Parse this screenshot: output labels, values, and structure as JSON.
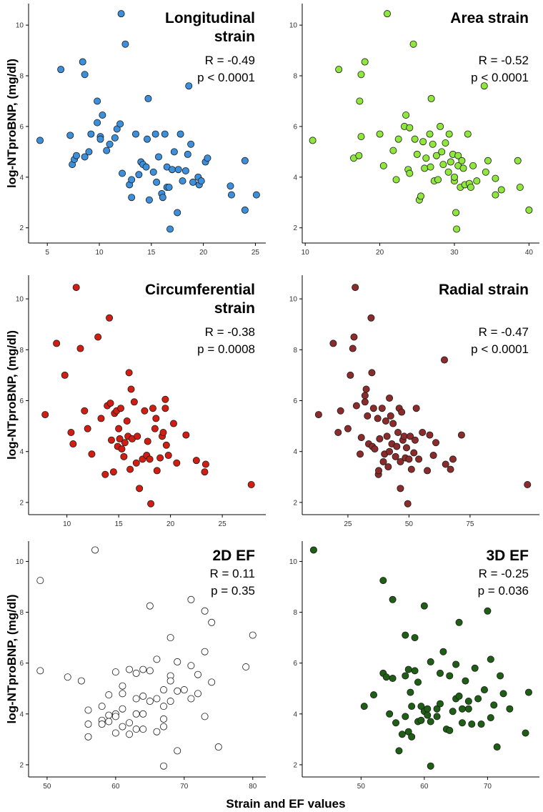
{
  "xlabel": "Strain and EF values",
  "chart_data": [
    {
      "type": "scatter",
      "title": "Longitudinal strain",
      "annotations": [
        "R = -0.49",
        "p < 0.0001"
      ],
      "ylabel": "log-NTproBNP, (mg/dl)",
      "color": "#3b8fdb",
      "xlim": [
        3.2,
        26
      ],
      "xticks": [
        5,
        10,
        15,
        20,
        25
      ],
      "ylim": [
        1.4,
        10.85
      ],
      "yticks": [
        2,
        4,
        6,
        8,
        10
      ],
      "x": [
        4.3,
        6.3,
        8.4,
        8.6,
        7.2,
        7.4,
        7.6,
        7.8,
        8.6,
        9.0,
        9.2,
        9.8,
        9.8,
        10.1,
        10.1,
        10.3,
        10.7,
        11.0,
        11.5,
        11.7,
        12.0,
        12.1,
        12.2,
        12.5,
        12.9,
        13.1,
        13.1,
        13.5,
        13.8,
        14.0,
        14.2,
        14.5,
        14.6,
        14.7,
        14.8,
        15.2,
        15.4,
        15.5,
        15.7,
        16.0,
        16.1,
        16.3,
        16.5,
        16.5,
        16.7,
        16.8,
        17.0,
        17.2,
        17.5,
        17.6,
        17.8,
        18.0,
        18.3,
        18.5,
        18.6,
        18.8,
        19.0,
        19.5,
        19.6,
        19.8,
        20.2,
        20.4,
        22.6,
        22.7,
        24.0,
        24.0,
        25.1
      ],
      "values": [
        5.45,
        8.25,
        8.55,
        8.05,
        5.65,
        4.5,
        4.7,
        4.85,
        4.8,
        5.0,
        5.7,
        6.15,
        7.0,
        5.6,
        5.5,
        6.45,
        5.05,
        5.3,
        5.55,
        5.9,
        6.1,
        10.45,
        4.15,
        9.25,
        3.7,
        3.9,
        3.2,
        5.7,
        4.1,
        4.6,
        4.5,
        4.4,
        5.5,
        7.1,
        3.1,
        4.2,
        5.7,
        3.8,
        4.8,
        3.35,
        3.2,
        5.7,
        3.6,
        4.4,
        3.6,
        1.95,
        4.3,
        5.0,
        2.6,
        4.3,
        5.7,
        3.85,
        4.25,
        4.9,
        7.6,
        5.3,
        3.8,
        4.0,
        3.7,
        3.85,
        4.6,
        4.75,
        3.65,
        3.3,
        4.65,
        2.7,
        3.3
      ]
    },
    {
      "type": "scatter",
      "title": "Area strain",
      "annotations": [
        "R = -0.52",
        "p < 0.0001"
      ],
      "color": "#8fe63c",
      "xlim": [
        9.6,
        41.4
      ],
      "xticks": [
        10,
        20,
        30,
        40
      ],
      "ylim": [
        1.4,
        10.85
      ],
      "yticks": [
        2,
        4,
        6,
        8,
        10
      ],
      "x": [
        11,
        14.5,
        17.5,
        18,
        16.5,
        17.2,
        17.3,
        17.5,
        20,
        20.5,
        21,
        21.8,
        22.2,
        22.5,
        23.3,
        23.5,
        23.8,
        24,
        24,
        24.5,
        24.7,
        25,
        25.3,
        25.5,
        25.8,
        26,
        26.2,
        26.7,
        26.8,
        26.9,
        27.1,
        27.3,
        27.6,
        27.8,
        28.1,
        28.3,
        28.5,
        28.8,
        29.2,
        29.3,
        29.5,
        29.8,
        30,
        30,
        30.2,
        30.3,
        30.5,
        30.5,
        30.8,
        31,
        31.2,
        31.4,
        31.8,
        32.0,
        32.2,
        32.5,
        33,
        34,
        34.2,
        34.5,
        35.5,
        35.5,
        36.3,
        38.5,
        38.8,
        40
      ],
      "values": [
        5.45,
        8.25,
        8.05,
        8.55,
        4.75,
        4.85,
        7.0,
        5.6,
        5.7,
        4.45,
        10.45,
        5.05,
        3.9,
        5.5,
        6.0,
        6.45,
        4.3,
        4.15,
        5.95,
        9.25,
        5.5,
        4.9,
        3.1,
        3.25,
        5.4,
        4.35,
        4.75,
        5.7,
        4.4,
        7.1,
        5.3,
        3.85,
        4.85,
        3.9,
        6.0,
        5.0,
        4.5,
        5.35,
        4.2,
        5.7,
        4.6,
        4.9,
        3.85,
        4.0,
        2.6,
        1.95,
        4.85,
        4.45,
        3.6,
        4.65,
        4.35,
        3.7,
        5.7,
        3.75,
        3.6,
        4.45,
        3.85,
        7.6,
        4.2,
        4.65,
        3.95,
        3.3,
        3.5,
        4.65,
        3.6,
        2.7
      ]
    },
    {
      "type": "scatter",
      "title": "Circumferential strain",
      "annotations": [
        "R = -0.38",
        "p = 0.0008"
      ],
      "ylabel": "log-NTproBNP, (mg/dl)",
      "color": "#d21e12",
      "xlim": [
        6.3,
        29.2
      ],
      "xticks": [
        10,
        15,
        20,
        25
      ],
      "ylim": [
        1.52,
        10.93
      ],
      "yticks": [
        2,
        4,
        6,
        8,
        10
      ],
      "x": [
        7.9,
        9,
        9.8,
        10.4,
        10.6,
        10.9,
        11.3,
        11.7,
        12,
        12.4,
        13,
        13.3,
        13.7,
        13.9,
        14.1,
        14.2,
        14.3,
        14.5,
        14.6,
        14.8,
        14.9,
        15.0,
        15.1,
        15.2,
        15.3,
        15.5,
        15.6,
        15.8,
        15.9,
        16.0,
        16.1,
        16.2,
        16.3,
        16.5,
        16.7,
        16.8,
        17,
        17.3,
        17.5,
        17.7,
        17.8,
        18.0,
        18.1,
        18.3,
        18.5,
        18.6,
        18.7,
        19.0,
        19.2,
        19.3,
        19.5,
        19.5,
        19.6,
        19.8,
        20.3,
        20.6,
        21.5,
        22.5,
        23.4,
        23.3,
        27.8
      ],
      "values": [
        5.45,
        8.25,
        7.0,
        4.75,
        4.3,
        10.45,
        8.05,
        5.6,
        4.9,
        3.9,
        8.5,
        5.3,
        3.1,
        5.8,
        9.25,
        5.9,
        4.45,
        3.2,
        5.5,
        5.6,
        4.2,
        4.9,
        4.5,
        5.7,
        4.1,
        3.8,
        4.35,
        5.2,
        4.6,
        7.1,
        3.3,
        6.45,
        4.5,
        5.95,
        3.55,
        4.6,
        2.55,
        3.7,
        5.6,
        3.85,
        4.4,
        3.7,
        1.95,
        5.7,
        4.9,
        5.3,
        3.25,
        3.75,
        4.6,
        4.75,
        5.7,
        6.05,
        4.25,
        3.85,
        5.1,
        3.55,
        4.65,
        3.65,
        3.5,
        3.2,
        2.7
      ]
    },
    {
      "type": "scatter",
      "title": "Radial strain",
      "annotations": [
        "R = -0.47",
        "p < 0.0001"
      ],
      "color": "#8c2b2b",
      "xlim": [
        6.3,
        103.4
      ],
      "xticks": [
        25,
        50,
        75
      ],
      "ylim": [
        1.52,
        10.93
      ],
      "yticks": [
        2,
        4,
        6,
        8,
        10
      ],
      "x": [
        13,
        19,
        21,
        22,
        25,
        26,
        27,
        27.5,
        28,
        28.5,
        30,
        30.5,
        32,
        32,
        32.5,
        33,
        33.5,
        34.5,
        34.8,
        35,
        35.5,
        36,
        37.2,
        37.5,
        37.6,
        38,
        39,
        39.5,
        40,
        40.5,
        41,
        41.5,
        42,
        42,
        42.5,
        43,
        43.5,
        44.5,
        45,
        45.5,
        46,
        46.5,
        46.5,
        47,
        47.5,
        48,
        48.5,
        49,
        49.5,
        50,
        50.5,
        51,
        52,
        52.5,
        53,
        54,
        55.5,
        57.5,
        58.5,
        60,
        61,
        64.5,
        65,
        67,
        68,
        71.5,
        98.5
      ],
      "values": [
        5.45,
        8.25,
        4.75,
        5.6,
        4.9,
        7.0,
        8.05,
        8.5,
        10.45,
        5.8,
        3.9,
        4.55,
        6.2,
        5.95,
        6.45,
        5.4,
        4.3,
        9.25,
        7.1,
        4.2,
        5.7,
        4.1,
        5.3,
        3.1,
        3.25,
        4.5,
        5.7,
        3.6,
        3.9,
        5.2,
        4.6,
        3.4,
        4.0,
        6.1,
        5.4,
        4.3,
        5.1,
        3.8,
        4.2,
        4.75,
        5.7,
        2.55,
        3.6,
        5.55,
        4.45,
        4.6,
        3.75,
        4.15,
        1.95,
        3.7,
        4.6,
        3.3,
        3.95,
        4.45,
        5.7,
        3.7,
        4.75,
        3.25,
        4.65,
        3.85,
        4.35,
        7.6,
        3.5,
        3.3,
        3.7,
        4.65,
        2.7
      ]
    },
    {
      "type": "scatter",
      "title": "2D EF",
      "annotations": [
        "R = 0.11",
        "p = 0.35"
      ],
      "ylabel": "log-NTproBNP, (mg/dl)",
      "color": "#ffffff",
      "xlim": [
        47.3,
        81.9
      ],
      "xticks": [
        50,
        60,
        70,
        80
      ],
      "ylim": [
        1.52,
        10.8
      ],
      "yticks": [
        2,
        4,
        6,
        8,
        10
      ],
      "x": [
        49,
        49,
        53,
        55,
        56,
        56,
        56,
        57,
        58,
        58,
        58,
        59,
        59,
        59,
        60,
        60,
        60,
        60,
        61,
        61,
        61,
        61,
        62,
        62,
        62,
        63,
        63,
        63,
        63,
        64,
        64,
        64,
        64,
        65,
        65,
        65,
        66,
        66,
        66,
        67,
        67,
        67,
        67,
        67,
        68,
        68,
        68,
        68,
        69,
        69,
        69,
        70,
        71,
        71,
        71,
        72,
        72,
        73,
        73,
        73,
        74,
        74,
        75,
        79,
        80
      ],
      "values": [
        9.25,
        5.7,
        5.45,
        5.3,
        4.15,
        3.6,
        3.1,
        10.45,
        4.3,
        3.75,
        3.6,
        4.75,
        3.95,
        3.7,
        5.65,
        4.0,
        3.9,
        3.25,
        5.1,
        4.8,
        4.2,
        3.5,
        5.75,
        3.65,
        3.2,
        5.6,
        4.6,
        4.0,
        3.4,
        5.75,
        4.7,
        4.0,
        3.4,
        8.25,
        5.7,
        4.5,
        6.15,
        4.6,
        3.3,
        4.95,
        4.3,
        3.8,
        3.5,
        1.95,
        7.0,
        5.5,
        5.3,
        4.5,
        6.05,
        4.9,
        2.55,
        4.95,
        8.5,
        5.9,
        4.6,
        5.55,
        4.8,
        8.05,
        6.45,
        3.9,
        7.6,
        5.25,
        2.7,
        5.85,
        7.1
      ]
    },
    {
      "type": "scatter",
      "title": "3D EF",
      "annotations": [
        "R = -0.25",
        "p = 0.036"
      ],
      "color": "#1f5f15",
      "xlim": [
        40.7,
        78.2
      ],
      "xticks": [
        50,
        60,
        70
      ],
      "ylim": [
        1.52,
        10.8
      ],
      "yticks": [
        2,
        4,
        6,
        8,
        10
      ],
      "x": [
        42.5,
        50.5,
        52,
        53.5,
        53.5,
        54,
        54.5,
        55,
        55,
        55.5,
        56,
        56.5,
        57,
        57,
        57,
        57.5,
        57.5,
        57.8,
        58,
        58,
        58.5,
        58.5,
        59,
        59,
        59.5,
        59.5,
        60,
        60,
        60.5,
        60.5,
        61,
        61,
        61,
        62,
        62,
        62.5,
        62.5,
        63,
        63.5,
        64,
        64,
        64.5,
        65,
        65,
        65.5,
        65.5,
        66,
        66,
        66.5,
        67,
        67,
        67.5,
        68,
        68.5,
        69,
        69.5,
        70,
        70.5,
        70.5,
        71,
        71.5,
        72,
        72.5,
        73.5,
        76,
        76.5
      ],
      "values": [
        10.45,
        4.3,
        4.75,
        9.25,
        5.6,
        5.45,
        4.0,
        8.5,
        5.4,
        3.65,
        2.55,
        3.2,
        7.1,
        5.5,
        3.9,
        3.3,
        5.75,
        4.85,
        3.1,
        4.3,
        5.7,
        7.0,
        3.7,
        5.25,
        4.3,
        3.75,
        8.25,
        4.1,
        3.95,
        4.2,
        6.05,
        1.95,
        3.7,
        4.2,
        3.9,
        4.4,
        5.6,
        6.45,
        3.4,
        5.5,
        3.35,
        4.1,
        5.95,
        4.6,
        7.6,
        4.7,
        3.65,
        4.2,
        5.3,
        4.5,
        4.2,
        3.6,
        5.8,
        4.6,
        3.6,
        4.95,
        8.05,
        6.15,
        3.85,
        4.35,
        2.7,
        5.5,
        4.8,
        4.2,
        3.25,
        4.85
      ]
    }
  ]
}
